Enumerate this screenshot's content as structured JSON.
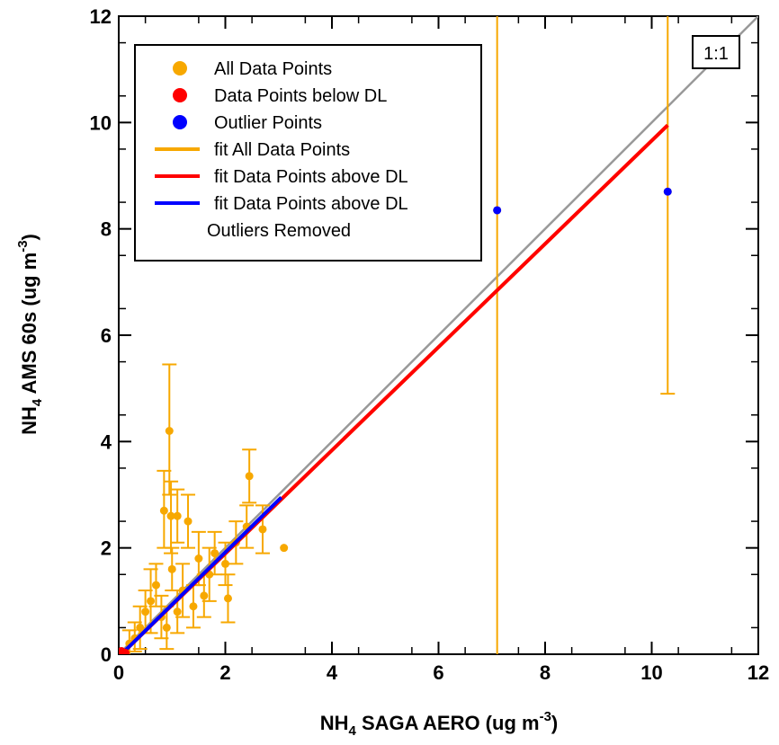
{
  "chart_data": {
    "type": "scatter",
    "title": "",
    "xlabel": {
      "base": "NH",
      "sub": "4",
      "rest": " SAGA AERO (ug m",
      "sup": "-3",
      "end": ")"
    },
    "ylabel": {
      "base": "NH",
      "sub": "4",
      "rest": " AMS 60s (ug m",
      "sup": "-3",
      "end": ")"
    },
    "xlim": [
      0,
      12
    ],
    "ylim": [
      0,
      12
    ],
    "xticks": [
      0,
      2,
      4,
      6,
      8,
      10,
      12
    ],
    "yticks": [
      0,
      2,
      4,
      6,
      8,
      10,
      12
    ],
    "one_to_one_label": "1:1",
    "legend_position": "top-left",
    "legend": [
      {
        "label": "All Data Points",
        "kind": "marker",
        "color": "#F7A800"
      },
      {
        "label": "Data Points below DL",
        "kind": "marker",
        "color": "#FF0000"
      },
      {
        "label": "Outlier Points",
        "kind": "marker",
        "color": "#0000FF"
      },
      {
        "label": "fit All Data Points",
        "kind": "line",
        "color": "#F7A800"
      },
      {
        "label": "fit Data Points above DL",
        "kind": "line",
        "color": "#FF0000"
      },
      {
        "label": "fit Data Points above DL",
        "kind": "line",
        "color": "#0000FF"
      },
      {
        "label": "Outliers Removed",
        "kind": "text",
        "color": ""
      }
    ],
    "colors": {
      "all": "#F7A800",
      "below_dl": "#FF0000",
      "outlier": "#0000FF",
      "one_to_one": "#999999"
    },
    "series": [
      {
        "name": "All Data Points",
        "points": [
          {
            "x": 0.95,
            "y": 4.2,
            "lo": 3.0,
            "hi": 5.45
          },
          {
            "x": 0.85,
            "y": 2.7,
            "lo": 2.0,
            "hi": 3.45
          },
          {
            "x": 0.98,
            "y": 2.6,
            "lo": 1.9,
            "hi": 3.25
          },
          {
            "x": 1.1,
            "y": 2.6,
            "lo": 2.1,
            "hi": 3.1
          },
          {
            "x": 1.3,
            "y": 2.5,
            "lo": 2.0,
            "hi": 3.0
          },
          {
            "x": 2.45,
            "y": 3.35,
            "lo": 2.85,
            "hi": 3.85
          },
          {
            "x": 2.7,
            "y": 2.35,
            "lo": 1.9,
            "hi": 2.8
          },
          {
            "x": 3.1,
            "y": 2.0,
            "lo": 2.0,
            "hi": 2.0
          },
          {
            "x": 2.05,
            "y": 1.05,
            "lo": 0.6,
            "hi": 1.5
          },
          {
            "x": 1.7,
            "y": 1.5,
            "lo": 1.0,
            "hi": 2.0
          },
          {
            "x": 1.5,
            "y": 1.8,
            "lo": 1.3,
            "hi": 2.3
          },
          {
            "x": 0.6,
            "y": 1.0,
            "lo": 0.4,
            "hi": 1.6
          },
          {
            "x": 1.2,
            "y": 1.2,
            "lo": 0.7,
            "hi": 1.7
          },
          {
            "x": 0.4,
            "y": 0.5,
            "lo": 0.1,
            "hi": 0.9
          },
          {
            "x": 0.8,
            "y": 0.7,
            "lo": 0.3,
            "hi": 1.1
          },
          {
            "x": 1.0,
            "y": 1.6,
            "lo": 1.2,
            "hi": 2.0
          },
          {
            "x": 2.2,
            "y": 2.1,
            "lo": 1.7,
            "hi": 2.5
          },
          {
            "x": 1.8,
            "y": 1.9,
            "lo": 1.5,
            "hi": 2.3
          },
          {
            "x": 0.3,
            "y": 0.3,
            "lo": 0.05,
            "hi": 0.6
          },
          {
            "x": 0.2,
            "y": 0.2,
            "lo": 0.0,
            "hi": 0.45
          },
          {
            "x": 0.5,
            "y": 0.8,
            "lo": 0.4,
            "hi": 1.2
          },
          {
            "x": 0.7,
            "y": 1.3,
            "lo": 0.9,
            "hi": 1.7
          },
          {
            "x": 1.4,
            "y": 0.9,
            "lo": 0.5,
            "hi": 1.3
          },
          {
            "x": 1.6,
            "y": 1.1,
            "lo": 0.7,
            "hi": 1.5
          },
          {
            "x": 2.0,
            "y": 1.7,
            "lo": 1.3,
            "hi": 2.1
          },
          {
            "x": 2.4,
            "y": 2.4,
            "lo": 2.0,
            "hi": 2.8
          },
          {
            "x": 0.9,
            "y": 0.5,
            "lo": 0.1,
            "hi": 0.9
          },
          {
            "x": 1.1,
            "y": 0.8,
            "lo": 0.4,
            "hi": 1.2
          },
          {
            "x": 7.1,
            "y": 8.35,
            "lo": 0.0,
            "hi": 12.0
          },
          {
            "x": 10.3,
            "y": 8.7,
            "lo": 4.9,
            "hi": 12.0
          }
        ]
      },
      {
        "name": "Data Points below DL",
        "points": [
          {
            "x": 0.05,
            "y": 0.05
          },
          {
            "x": 0.12,
            "y": 0.02
          }
        ]
      },
      {
        "name": "Outlier Points",
        "points": [
          {
            "x": 7.1,
            "y": 8.35
          },
          {
            "x": 10.3,
            "y": 8.7
          }
        ]
      }
    ],
    "fits": [
      {
        "name": "fit All Data Points",
        "color": "#F7A800",
        "x": [
          0.1,
          10.3
        ],
        "y": [
          0.05,
          9.95
        ]
      },
      {
        "name": "fit Data Points above DL",
        "color": "#FF0000",
        "x": [
          0.1,
          10.3
        ],
        "y": [
          0.05,
          9.95
        ]
      },
      {
        "name": "fit Data Points above DL Outliers Removed",
        "color": "#0000FF",
        "x": [
          0.1,
          3.05
        ],
        "y": [
          0.05,
          2.95
        ]
      }
    ],
    "one_to_one": {
      "x": [
        0,
        12
      ],
      "y": [
        0,
        12
      ]
    }
  }
}
